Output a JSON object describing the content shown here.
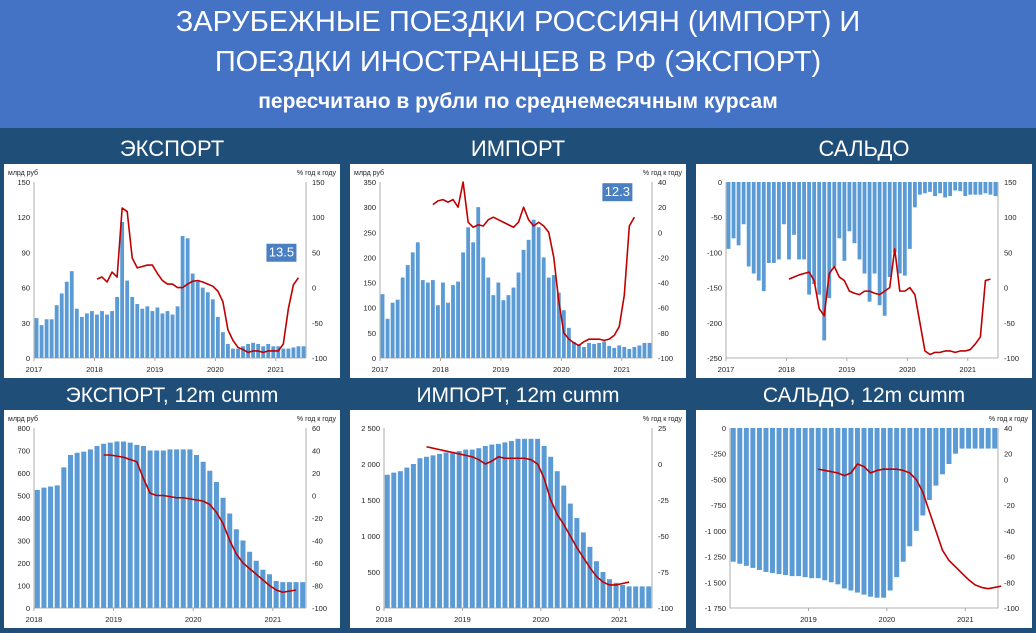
{
  "header": {
    "title_line1": "ЗАРУБЕЖНЫЕ ПОЕЗДКИ РОССИЯН (ИМПОРТ) И",
    "title_line2": "ПОЕЗДКИ ИНОСТРАНЦЕВ В РФ (ЭКСПОРТ)",
    "subtitle": "пересчитано в рубли по среднемесячным курсам"
  },
  "colors": {
    "bar": "#5b9bd5",
    "line": "#c00000",
    "label_box": "#4a7fc1",
    "header_bg": "#4472c4",
    "dark_bg": "#1f4e79"
  },
  "panel_headers": [
    "ЭКСПОРТ",
    "ИМПОРТ",
    "САЛЬДО",
    "ЭКСПОРТ, 12m cumm",
    "ИМПОРТ, 12m cumm",
    "САЛЬДО, 12m cumm"
  ],
  "chart_data": [
    {
      "type": "bar",
      "title": "ЭКСПОРТ",
      "ylabel_left": "млрд руб",
      "ylabel_right": "% год к году",
      "left_ticks": [
        "0",
        "30",
        "60",
        "90",
        "120",
        "150"
      ],
      "ylim": [
        0,
        150
      ],
      "right_ticks": [
        "-100",
        "-50",
        "0",
        "50",
        "100",
        "150"
      ],
      "y2lim": [
        -100,
        150
      ],
      "x_ticks": [
        {
          "label": "2017",
          "index": 0
        },
        {
          "label": "2018",
          "index": 12
        },
        {
          "label": "2019",
          "index": 24
        },
        {
          "label": "2020",
          "index": 36
        },
        {
          "label": "2021",
          "index": 48
        }
      ],
      "bar_values": [
        34,
        28,
        33,
        33,
        45,
        55,
        65,
        74,
        42,
        35,
        38,
        40,
        37,
        40,
        37,
        40,
        52,
        116,
        66,
        52,
        46,
        42,
        44,
        40,
        43,
        38,
        40,
        37,
        44,
        104,
        102,
        72,
        65,
        60,
        56,
        50,
        35,
        22,
        12,
        8,
        8,
        10,
        12,
        13,
        12,
        10,
        12,
        10,
        10,
        8,
        8,
        9,
        10,
        10
      ],
      "line_start_index": 12,
      "line_values": [
        12,
        15,
        8,
        22,
        15,
        113,
        108,
        42,
        28,
        30,
        32,
        32,
        20,
        10,
        5,
        5,
        0,
        0,
        5,
        9,
        10,
        8,
        5,
        2,
        -5,
        -20,
        -60,
        -75,
        -85,
        -88,
        -92,
        -90,
        -90,
        -92,
        -90,
        -90,
        -90,
        -80,
        -30,
        4,
        14
      ],
      "annotation": "13.5"
    },
    {
      "type": "bar",
      "title": "ИМПОРТ",
      "ylabel_left": "млрд руб",
      "ylabel_right": "% год к году",
      "left_ticks": [
        "0",
        "50",
        "100",
        "150",
        "200",
        "250",
        "300",
        "350"
      ],
      "ylim": [
        0,
        350
      ],
      "right_ticks": [
        "-100",
        "-80",
        "-60",
        "-40",
        "-20",
        "0",
        "20",
        "40"
      ],
      "y2lim": [
        -100,
        40
      ],
      "x_ticks": [
        {
          "label": "2017",
          "index": 0
        },
        {
          "label": "2018",
          "index": 12
        },
        {
          "label": "2019",
          "index": 24
        },
        {
          "label": "2020",
          "index": 36
        },
        {
          "label": "2021",
          "index": 48
        }
      ],
      "bar_values": [
        127,
        78,
        110,
        116,
        160,
        185,
        210,
        230,
        155,
        150,
        155,
        105,
        150,
        110,
        145,
        152,
        210,
        260,
        230,
        300,
        200,
        160,
        125,
        150,
        115,
        125,
        140,
        170,
        215,
        235,
        275,
        260,
        200,
        160,
        165,
        130,
        95,
        60,
        32,
        25,
        22,
        30,
        28,
        30,
        33,
        24,
        20,
        25,
        22,
        18,
        22,
        25,
        30,
        30
      ],
      "line_start_index": 10,
      "line_values": [
        22,
        25,
        26,
        24,
        26,
        20,
        40,
        8,
        4,
        6,
        5,
        10,
        12,
        10,
        8,
        6,
        4,
        8,
        20,
        10,
        5,
        8,
        5,
        0,
        -20,
        -55,
        -80,
        -85,
        -88,
        -90,
        -87,
        -85,
        -85,
        -85,
        -86,
        -85,
        -82,
        -75,
        -50,
        5,
        12
      ],
      "annotation": "12.3"
    },
    {
      "type": "bar",
      "title": "САЛЬДО",
      "left_ticks": [
        "-250",
        "-200",
        "-150",
        "-100",
        "-50",
        "0"
      ],
      "ylim": [
        -250,
        0
      ],
      "right_ticks": [
        "-100",
        "-50",
        "0",
        "50",
        "100",
        "150"
      ],
      "y2lim": [
        -100,
        150
      ],
      "x_ticks": [
        {
          "label": "2017",
          "index": 0
        },
        {
          "label": "2018",
          "index": 12
        },
        {
          "label": "2019",
          "index": 24
        },
        {
          "label": "2020",
          "index": 36
        },
        {
          "label": "2021",
          "index": 48
        }
      ],
      "bar_values": [
        -95,
        -80,
        -90,
        -60,
        -120,
        -130,
        -140,
        -155,
        -115,
        -115,
        -110,
        -60,
        -110,
        -75,
        -110,
        -110,
        -160,
        -145,
        -160,
        -225,
        -165,
        -120,
        -80,
        -112,
        -70,
        -87,
        -110,
        -130,
        -170,
        -130,
        -175,
        -190,
        -135,
        -100,
        -130,
        -133,
        -95,
        -36,
        -18,
        -16,
        -14,
        -20,
        -16,
        -22,
        -20,
        -12,
        -13,
        -20,
        -18,
        -18,
        -18,
        -16,
        -18,
        -20
      ],
      "line_start_index": 12,
      "line_values": [
        12,
        15,
        18,
        20,
        22,
        10,
        -30,
        -40,
        20,
        30,
        15,
        10,
        -5,
        -8,
        -10,
        -5,
        -5,
        -8,
        -10,
        -5,
        0,
        55,
        -5,
        -5,
        0,
        -10,
        -50,
        -90,
        -95,
        -92,
        -92,
        -90,
        -90,
        -92,
        -90,
        -90,
        -88,
        -80,
        -70,
        10,
        12
      ]
    },
    {
      "type": "bar",
      "title": "ЭКСПОРТ, 12m cumm",
      "ylabel_left": "млрд руб",
      "ylabel_right": "% год к году",
      "left_ticks": [
        "0",
        "100",
        "200",
        "300",
        "400",
        "500",
        "600",
        "700",
        "800"
      ],
      "ylim": [
        0,
        800
      ],
      "right_ticks": [
        "-100",
        "-80",
        "-60",
        "-40",
        "-20",
        "0",
        "20",
        "40",
        "60"
      ],
      "y2lim": [
        -100,
        60
      ],
      "x_ticks": [
        {
          "label": "2018",
          "index": 0
        },
        {
          "label": "2019",
          "index": 12
        },
        {
          "label": "2020",
          "index": 24
        },
        {
          "label": "2021",
          "index": 36
        }
      ],
      "bar_values": [
        525,
        535,
        540,
        545,
        625,
        680,
        690,
        695,
        705,
        720,
        730,
        735,
        740,
        740,
        735,
        725,
        720,
        700,
        700,
        700,
        705,
        705,
        705,
        705,
        680,
        650,
        610,
        560,
        490,
        420,
        350,
        300,
        250,
        210,
        170,
        150,
        120,
        115,
        115,
        115,
        115
      ],
      "line_start_index": 10,
      "line_values": [
        36,
        36,
        35,
        34,
        32,
        30,
        15,
        2,
        0,
        0,
        -1,
        -2,
        -2,
        -3,
        -4,
        -5,
        -8,
        -15,
        -25,
        -40,
        -52,
        -60,
        -65,
        -70,
        -75,
        -80,
        -84,
        -86,
        -85,
        -84
      ]
    },
    {
      "type": "bar",
      "title": "ИМПОРТ, 12m cumm",
      "ylabel_right": "% год к году",
      "left_ticks": [
        "0",
        "500",
        "1 000",
        "1 500",
        "2 000",
        "2 500"
      ],
      "ylim": [
        0,
        2500
      ],
      "right_ticks": [
        "-100",
        "-75",
        "-50",
        "-25",
        "0",
        "25"
      ],
      "y2lim": [
        -100,
        25
      ],
      "x_ticks": [
        {
          "label": "2018",
          "index": 0
        },
        {
          "label": "2019",
          "index": 12
        },
        {
          "label": "2020",
          "index": 24
        },
        {
          "label": "2021",
          "index": 36
        }
      ],
      "bar_values": [
        1850,
        1880,
        1900,
        1950,
        2000,
        2080,
        2100,
        2120,
        2140,
        2160,
        2170,
        2180,
        2200,
        2200,
        2220,
        2250,
        2270,
        2280,
        2300,
        2320,
        2350,
        2350,
        2350,
        2350,
        2250,
        2100,
        1900,
        1700,
        1450,
        1250,
        1050,
        850,
        650,
        500,
        400,
        350,
        320,
        300,
        300,
        300,
        300
      ],
      "line_start_index": 6,
      "line_values": [
        12,
        11,
        10,
        9,
        8,
        7,
        6,
        5,
        3,
        0,
        2,
        5,
        4,
        4,
        4,
        4,
        3,
        0,
        -10,
        -25,
        -35,
        -42,
        -50,
        -58,
        -65,
        -72,
        -78,
        -82,
        -84,
        -84,
        -83,
        -82
      ]
    },
    {
      "type": "bar",
      "title": "САЛЬДО, 12m cumm",
      "ylabel_right": "% год к году",
      "left_ticks": [
        "-1 750",
        "-1 500",
        "-1 250",
        "-1 000",
        "-750",
        "-500",
        "-250",
        "0"
      ],
      "ylim": [
        -1750,
        0
      ],
      "right_ticks": [
        "-100",
        "-80",
        "-60",
        "-40",
        "-20",
        "0",
        "20",
        "40"
      ],
      "y2lim": [
        -100,
        40
      ],
      "x_ticks": [
        {
          "label": "2019",
          "index": 12
        },
        {
          "label": "2020",
          "index": 24
        },
        {
          "label": "2021",
          "index": 36
        }
      ],
      "bar_values": [
        -1300,
        -1320,
        -1340,
        -1360,
        -1380,
        -1400,
        -1410,
        -1420,
        -1430,
        -1440,
        -1440,
        -1450,
        -1460,
        -1460,
        -1480,
        -1500,
        -1520,
        -1560,
        -1580,
        -1600,
        -1620,
        -1640,
        -1650,
        -1650,
        -1580,
        -1450,
        -1300,
        -1150,
        -1000,
        -850,
        -700,
        -560,
        -450,
        -350,
        -250,
        -200,
        -200,
        -200,
        -200,
        -200,
        -200
      ],
      "line_start_index": 13,
      "line_values": [
        8,
        7,
        6,
        5,
        3,
        5,
        12,
        10,
        5,
        7,
        8,
        8,
        8,
        7,
        5,
        0,
        -10,
        -25,
        -40,
        -55,
        -63,
        -68,
        -73,
        -78,
        -82,
        -84,
        -85,
        -84,
        -83
      ]
    }
  ]
}
